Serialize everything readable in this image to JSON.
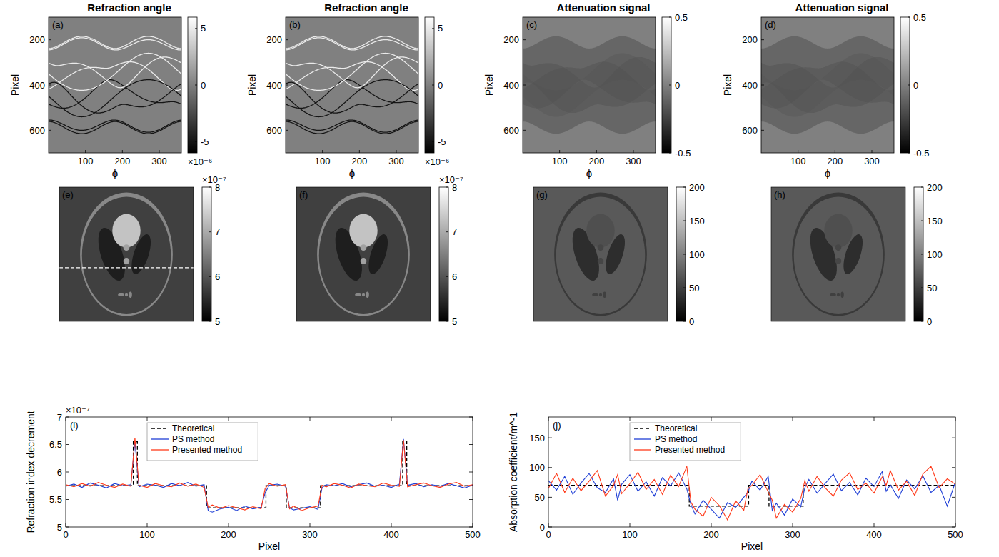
{
  "chart_data": [
    {
      "type": "heatmap",
      "title": "Refraction angle",
      "annotations": [
        "(a)"
      ],
      "x_label": "ϕ",
      "y_label": "Pixel",
      "xlim": [
        0,
        360
      ],
      "ylim": [
        700,
        100
      ],
      "xticks": [
        100,
        200,
        300
      ],
      "yticks": [
        200,
        400,
        600
      ],
      "colorbar": {
        "range": [
          -6,
          6
        ],
        "ticks": [
          -5,
          0,
          5
        ],
        "offset_text": "×10⁻⁶"
      },
      "cells": {
        "background": 0,
        "edge_positive": 5,
        "edge_negative": -5
      }
    },
    {
      "type": "heatmap",
      "title": "Refraction angle",
      "annotations": [
        "(b)"
      ],
      "x_label": "ϕ",
      "y_label": "Pixel",
      "xlim": [
        0,
        360
      ],
      "ylim": [
        700,
        100
      ],
      "xticks": [
        100,
        200,
        300
      ],
      "yticks": [
        200,
        400,
        600
      ],
      "colorbar": {
        "range": [
          -6,
          6
        ],
        "ticks": [
          -5,
          0,
          5
        ],
        "offset_text": "×10⁻⁶"
      },
      "cells": {
        "background": 0,
        "edge_positive": 5,
        "edge_negative": -5
      }
    },
    {
      "type": "heatmap",
      "title": "Attenuation signal",
      "annotations": [
        "(c)"
      ],
      "x_label": "ϕ",
      "y_label": "Pixel",
      "xlim": [
        0,
        360
      ],
      "ylim": [
        700,
        100
      ],
      "xticks": [
        100,
        200,
        300
      ],
      "yticks": [
        200,
        400,
        600
      ],
      "colorbar": {
        "range": [
          -0.5,
          0.5
        ],
        "ticks": [
          -0.5,
          0,
          0.5
        ]
      },
      "cells": {
        "background": 0,
        "object": -0.1,
        "dense": -0.18
      }
    },
    {
      "type": "heatmap",
      "title": "Attenuation signal",
      "annotations": [
        "(d)"
      ],
      "x_label": "ϕ",
      "y_label": "Pixel",
      "xlim": [
        0,
        360
      ],
      "ylim": [
        700,
        100
      ],
      "xticks": [
        100,
        200,
        300
      ],
      "yticks": [
        200,
        400,
        600
      ],
      "colorbar": {
        "range": [
          -0.5,
          0.5
        ],
        "ticks": [
          -0.5,
          0,
          0.5
        ]
      },
      "cells": {
        "background": 0,
        "object": -0.1,
        "dense": -0.18
      }
    },
    {
      "type": "image",
      "annotations": [
        "(e)"
      ],
      "colorbar": {
        "range": [
          5,
          8
        ],
        "ticks": [
          5,
          6,
          7,
          8
        ],
        "offset_text": "×10⁻⁷"
      },
      "cells": {
        "background": 5.75,
        "outer_rim": 6.6,
        "inner": 5.75,
        "dark_ellipses": 5.35,
        "top_circle": 7.3,
        "neck": 6.9,
        "small_spots": 6.6
      }
    },
    {
      "type": "image",
      "annotations": [
        "(f)"
      ],
      "colorbar": {
        "range": [
          5,
          8
        ],
        "ticks": [
          5,
          6,
          7,
          8
        ],
        "offset_text": "×10⁻⁷"
      },
      "cells": {
        "background": 5.75,
        "outer_rim": 6.6,
        "inner": 5.75,
        "dark_ellipses": 5.35,
        "top_circle": 7.3,
        "neck": 6.9,
        "small_spots": 6.6
      }
    },
    {
      "type": "image",
      "annotations": [
        "(g)"
      ],
      "colorbar": {
        "range": [
          0,
          200
        ],
        "ticks": [
          0,
          50,
          100,
          150,
          200
        ]
      },
      "cells": {
        "background": 70,
        "outer_rim": 45,
        "inner": 70,
        "dark_ellipses": 35,
        "top_circle": 62,
        "neck": 55,
        "small_spots": 50
      }
    },
    {
      "type": "image",
      "annotations": [
        "(h)"
      ],
      "colorbar": {
        "range": [
          0,
          200
        ],
        "ticks": [
          0,
          50,
          100,
          150,
          200
        ]
      },
      "cells": {
        "background": 70,
        "outer_rim": 45,
        "inner": 70,
        "dark_ellipses": 35,
        "top_circle": 62,
        "neck": 55,
        "small_spots": 50
      }
    },
    {
      "type": "line",
      "annotations": [
        "(i)"
      ],
      "x_label": "Pixel",
      "y_label": "Refraction index decrement",
      "y_offset_text": "×10⁻⁷",
      "xlim": [
        0,
        500
      ],
      "ylim": [
        5,
        7
      ],
      "xticks": [
        0,
        100,
        200,
        300,
        400,
        500
      ],
      "yticks": [
        5,
        5.5,
        6,
        6.5,
        7
      ],
      "legend": "upper left",
      "series": [
        {
          "name": "Theoretical",
          "color": "#000000",
          "line_style": "dashed",
          "x": [
            0,
            83,
            83,
            88,
            88,
            173,
            173,
            246,
            246,
            271,
            271,
            313,
            313,
            414,
            414,
            419,
            419,
            500
          ],
          "values": [
            5.75,
            5.75,
            6.55,
            6.55,
            5.75,
            5.75,
            5.35,
            5.35,
            5.75,
            5.75,
            5.35,
            5.35,
            5.75,
            5.75,
            6.55,
            6.55,
            5.75,
            5.75
          ]
        },
        {
          "name": "PS method",
          "color": "#1f3fd6",
          "line_style": "solid",
          "x": [
            0,
            10,
            20,
            30,
            40,
            50,
            60,
            70,
            80,
            85,
            90,
            100,
            110,
            120,
            130,
            140,
            150,
            160,
            170,
            175,
            180,
            190,
            200,
            210,
            220,
            230,
            240,
            245,
            250,
            260,
            270,
            275,
            280,
            290,
            300,
            310,
            315,
            320,
            330,
            340,
            350,
            360,
            370,
            380,
            390,
            400,
            410,
            415,
            420,
            430,
            440,
            450,
            460,
            470,
            480,
            490,
            500
          ],
          "values": [
            5.74,
            5.78,
            5.72,
            5.8,
            5.76,
            5.71,
            5.79,
            5.75,
            5.77,
            6.55,
            5.73,
            5.78,
            5.76,
            5.72,
            5.79,
            5.75,
            5.81,
            5.74,
            5.77,
            5.3,
            5.27,
            5.33,
            5.36,
            5.3,
            5.38,
            5.33,
            5.36,
            5.62,
            5.76,
            5.78,
            5.74,
            5.35,
            5.31,
            5.34,
            5.37,
            5.32,
            5.72,
            5.77,
            5.75,
            5.79,
            5.73,
            5.77,
            5.8,
            5.74,
            5.76,
            5.72,
            5.78,
            6.6,
            5.76,
            5.79,
            5.73,
            5.77,
            5.74,
            5.79,
            5.75,
            5.71,
            5.76
          ]
        },
        {
          "name": "Presented method",
          "color": "#ff3a1a",
          "line_style": "solid",
          "x": [
            0,
            10,
            20,
            30,
            40,
            50,
            60,
            70,
            80,
            85,
            90,
            100,
            110,
            120,
            130,
            140,
            150,
            160,
            170,
            175,
            180,
            190,
            200,
            210,
            220,
            230,
            240,
            245,
            250,
            260,
            270,
            275,
            280,
            290,
            300,
            310,
            315,
            320,
            330,
            340,
            350,
            360,
            370,
            380,
            390,
            400,
            410,
            415,
            420,
            430,
            440,
            450,
            460,
            470,
            480,
            490,
            500
          ],
          "values": [
            5.77,
            5.73,
            5.79,
            5.74,
            5.81,
            5.76,
            5.72,
            5.78,
            5.74,
            6.62,
            5.76,
            5.72,
            5.79,
            5.75,
            5.73,
            5.8,
            5.74,
            5.78,
            5.72,
            5.36,
            5.4,
            5.34,
            5.39,
            5.35,
            5.31,
            5.37,
            5.33,
            5.7,
            5.79,
            5.74,
            5.77,
            5.33,
            5.38,
            5.3,
            5.35,
            5.38,
            5.76,
            5.73,
            5.79,
            5.76,
            5.71,
            5.78,
            5.75,
            5.73,
            5.8,
            5.76,
            5.74,
            6.58,
            5.73,
            5.77,
            5.8,
            5.75,
            5.72,
            5.78,
            5.81,
            5.74,
            5.77
          ]
        }
      ]
    },
    {
      "type": "line",
      "annotations": [
        "(j)"
      ],
      "x_label": "Pixel",
      "y_label": "Absorption coefficient/m^-1",
      "xlim": [
        0,
        500
      ],
      "ylim": [
        0,
        185
      ],
      "xticks": [
        0,
        100,
        200,
        300,
        400,
        500
      ],
      "yticks": [
        0,
        50,
        100,
        150
      ],
      "legend": "upper left",
      "series": [
        {
          "name": "Theoretical",
          "color": "#000000",
          "line_style": "dashed",
          "x": [
            0,
            173,
            173,
            246,
            246,
            271,
            271,
            313,
            313,
            500
          ],
          "values": [
            70,
            70,
            35,
            35,
            70,
            70,
            35,
            35,
            70,
            70
          ]
        },
        {
          "name": "PS method",
          "color": "#1f3fd6",
          "line_style": "solid",
          "x": [
            0,
            10,
            20,
            30,
            40,
            50,
            60,
            70,
            80,
            85,
            90,
            100,
            110,
            120,
            130,
            140,
            150,
            160,
            170,
            175,
            180,
            190,
            200,
            210,
            220,
            230,
            240,
            245,
            250,
            260,
            270,
            275,
            280,
            290,
            300,
            310,
            315,
            320,
            330,
            340,
            350,
            360,
            370,
            380,
            390,
            400,
            410,
            415,
            420,
            430,
            440,
            450,
            460,
            470,
            480,
            490,
            500
          ],
          "values": [
            78,
            62,
            85,
            55,
            74,
            90,
            66,
            58,
            81,
            45,
            72,
            88,
            60,
            76,
            52,
            83,
            69,
            91,
            64,
            38,
            22,
            45,
            30,
            15,
            41,
            33,
            50,
            58,
            77,
            62,
            85,
            28,
            40,
            20,
            47,
            34,
            66,
            80,
            57,
            73,
            89,
            61,
            75,
            54,
            82,
            68,
            93,
            60,
            71,
            48,
            79,
            64,
            86,
            58,
            70,
            35,
            76
          ]
        },
        {
          "name": "Presented method",
          "color": "#ff3a1a",
          "line_style": "solid",
          "x": [
            0,
            10,
            20,
            30,
            40,
            50,
            60,
            70,
            80,
            85,
            90,
            100,
            110,
            120,
            130,
            140,
            150,
            160,
            170,
            175,
            180,
            190,
            200,
            210,
            220,
            230,
            240,
            245,
            250,
            260,
            270,
            275,
            280,
            290,
            300,
            310,
            315,
            320,
            330,
            340,
            350,
            360,
            370,
            380,
            390,
            400,
            410,
            415,
            420,
            430,
            440,
            450,
            460,
            470,
            480,
            490,
            500
          ],
          "values": [
            65,
            90,
            58,
            82,
            61,
            77,
            95,
            52,
            70,
            88,
            56,
            73,
            92,
            63,
            80,
            55,
            87,
            68,
            102,
            42,
            30,
            18,
            50,
            36,
            12,
            44,
            28,
            64,
            70,
            88,
            59,
            45,
            15,
            38,
            25,
            48,
            78,
            60,
            85,
            66,
            52,
            79,
            91,
            63,
            74,
            57,
            84,
            70,
            95,
            62,
            77,
            53,
            89,
            102,
            66,
            81,
            72
          ]
        }
      ]
    }
  ]
}
